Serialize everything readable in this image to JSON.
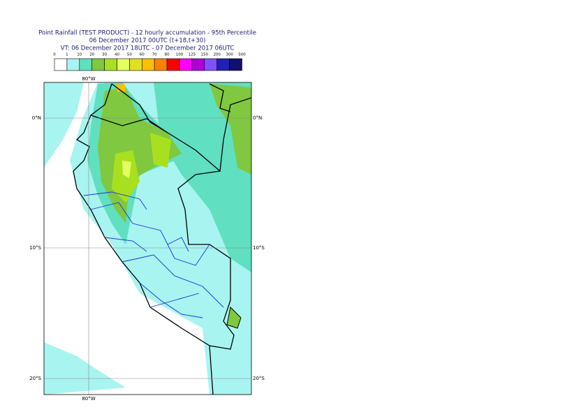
{
  "header": {
    "title": "Point Rainfall (TEST PRODUCT) - 12 hourly accumulation - 95th Percentile",
    "line2": "06 December 2017 00UTC (t+18,t+30)",
    "line3": "VT: 06 December 2017 18UTC - 07 December 2017 06UTC"
  },
  "legend": {
    "levels": [
      "0",
      "1",
      "10",
      "20",
      "30",
      "40",
      "50",
      "60",
      "70",
      "80",
      "100",
      "125",
      "150",
      "200",
      "300",
      "500"
    ],
    "colors": [
      "#ffffff",
      "#a8f4f0",
      "#60e0c0",
      "#80c840",
      "#a8e020",
      "#e4ff60",
      "#e0e020",
      "#f8c000",
      "#ff8000",
      "#ff0000",
      "#ff00ff",
      "#b000d8",
      "#8050ff",
      "#2020b8",
      "#101070"
    ]
  },
  "map": {
    "lon_labels": [
      "80°W"
    ],
    "lat_labels": [
      "0°N",
      "10°S",
      "20°S"
    ]
  }
}
